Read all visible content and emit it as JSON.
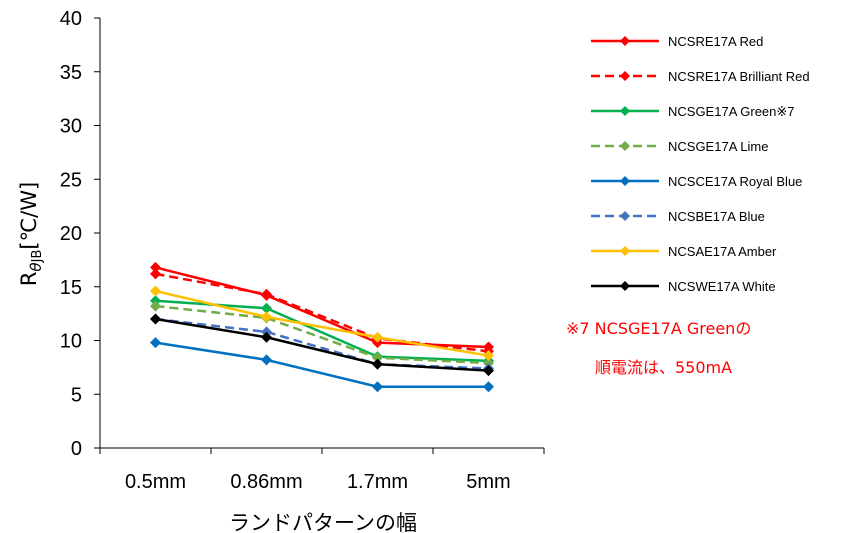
{
  "chart_data": {
    "type": "line",
    "categories": [
      "0.5mm",
      "0.86mm",
      "1.7mm",
      "5mm"
    ],
    "xlabel": "ランドパターンの幅",
    "ylabel_main": "R",
    "ylabel_theta": "θ",
    "ylabel_sub": "JB",
    "ylabel_unit": "[℃/W]",
    "ylim": [
      0,
      40
    ],
    "yticks": [
      "0",
      "5",
      "10",
      "15",
      "20",
      "25",
      "30",
      "35",
      "40"
    ],
    "grid": false,
    "legend_position": "right",
    "series": [
      {
        "name": "NCSRE17A Red",
        "values": [
          16.8,
          14.2,
          9.8,
          9.4
        ],
        "color": "#ff0000",
        "dashed": false
      },
      {
        "name": "NCSRE17A Brilliant Red",
        "values": [
          16.2,
          14.3,
          10.2,
          9.0
        ],
        "color": "#ff0000",
        "dashed": true
      },
      {
        "name": "NCSGE17A Green※7",
        "values": [
          13.7,
          13.0,
          8.5,
          8.1
        ],
        "color": "#00b050",
        "dashed": false
      },
      {
        "name": "NCSGE17A Lime",
        "values": [
          13.2,
          12.1,
          8.4,
          7.9
        ],
        "color": "#70ad47",
        "dashed": true
      },
      {
        "name": "NCSCE17A Royal Blue",
        "values": [
          9.8,
          8.2,
          5.7,
          5.7
        ],
        "color": "#0070c0",
        "dashed": false
      },
      {
        "name": "NCSBE17A Blue",
        "values": [
          12.0,
          10.8,
          7.8,
          7.4
        ],
        "color": "#4472c4",
        "dashed": true
      },
      {
        "name": "NCSAE17A Amber",
        "values": [
          14.6,
          12.2,
          10.3,
          8.6
        ],
        "color": "#ffc000",
        "dashed": false
      },
      {
        "name": "NCSWE17A White",
        "values": [
          12.0,
          10.3,
          7.8,
          7.2
        ],
        "color": "#000000",
        "dashed": false
      }
    ],
    "annotation": {
      "line1": "※7 NCSGE17A Greenの",
      "line2": "順電流は、550mA",
      "color": "#ff0000"
    }
  }
}
